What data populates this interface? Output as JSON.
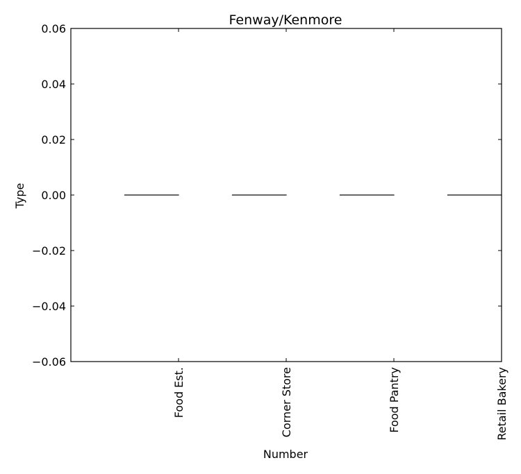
{
  "chart_data": {
    "type": "bar",
    "title": "Fenway/Kenmore",
    "xlabel": "Number",
    "ylabel": "Type",
    "categories": [
      "Food Est.",
      "Corner Store",
      "Food Pantry",
      "Retail Bakery"
    ],
    "values": [
      0,
      0,
      0,
      0
    ],
    "ylim": [
      -0.06,
      0.06
    ],
    "yticks": [
      0.06,
      0.04,
      0.02,
      0.0,
      -0.02,
      -0.04,
      -0.06
    ],
    "ytick_labels": [
      "0.06",
      "0.04",
      "0.02",
      "0.00",
      "−0.02",
      "−0.04",
      "−0.06"
    ],
    "grid": false,
    "legend": "none",
    "colors": {
      "bar": "#000000",
      "axes": "#000000",
      "background": "#ffffff"
    }
  }
}
